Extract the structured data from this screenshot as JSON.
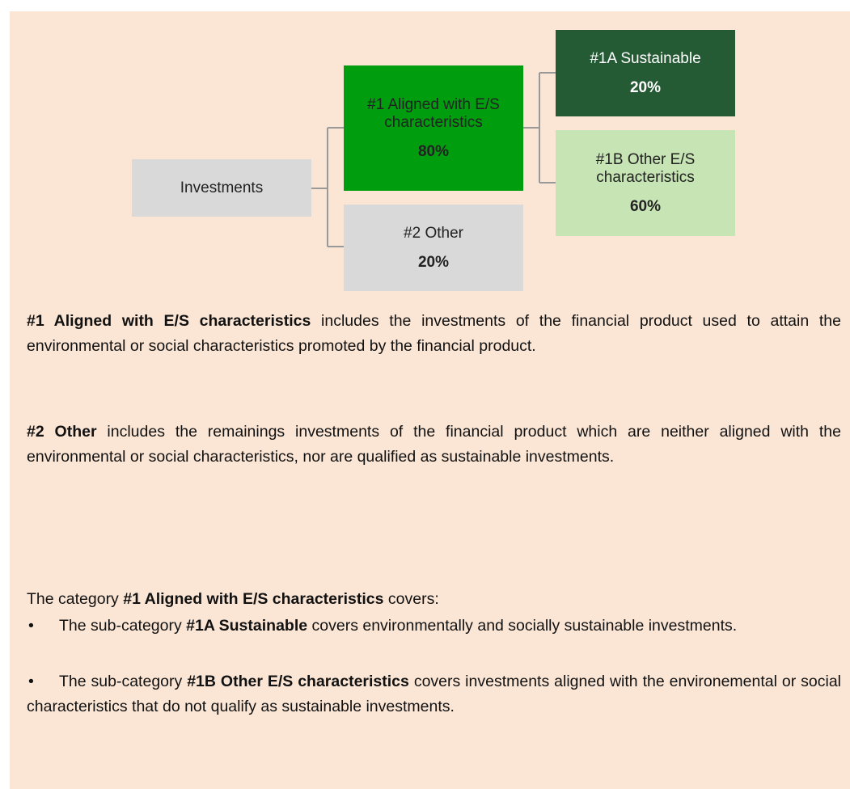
{
  "diagram": {
    "nodes": [
      {
        "label": "Investments"
      },
      {
        "label": "#1 Aligned with E/S characteristics",
        "value": "80%"
      },
      {
        "label": "#2 Other",
        "value": "20%"
      },
      {
        "label": "#1A Sustainable",
        "value": "20%"
      },
      {
        "label": "#1B Other E/S characteristics",
        "value": "60%"
      }
    ]
  },
  "paragraphs": [
    [
      {
        "bold": "#1 Aligned with E/S characteristics"
      },
      {
        "text": " includes the investments of the financial product used to attain the environmental or social characteristics promoted by the financial product."
      }
    ],
    [
      {
        "bold": "#2 Other"
      },
      {
        "text": " includes the remainings investments of the financial product which are neither aligned with the environmental or social characteristics, nor are qualified as sustainable investments."
      }
    ]
  ],
  "category_text": [
    {
      "text": "The category "
    },
    {
      "bold": "#1 Aligned with E/S characteristics"
    },
    {
      "text": " covers:"
    }
  ],
  "bullets": [
    [
      {
        "text": "The sub-category "
      },
      {
        "bold": "#1A Sustainable"
      },
      {
        "text": " covers environmentally and socially sustainable investments."
      }
    ],
    [
      {
        "text": "The sub-category "
      },
      {
        "bold": "#1B Other E/S characteristics"
      },
      {
        "text": " covers investments aligned with the environemental or social characteristics that do not qualify as sustainable investments."
      }
    ]
  ]
}
